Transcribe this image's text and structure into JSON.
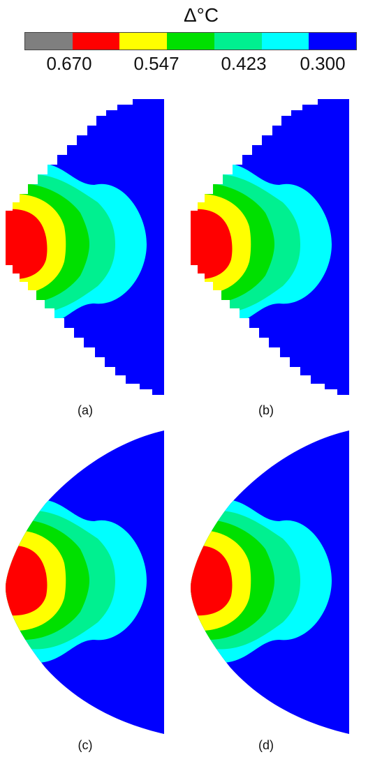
{
  "legend": {
    "title": "Δ°C",
    "colors": [
      "#7f7f7f",
      "#ff0000",
      "#ffff00",
      "#00e000",
      "#00f090",
      "#00ffff",
      "#0000ff"
    ],
    "ticks": [
      "0.670",
      "0.547",
      "0.423",
      "0.300"
    ]
  },
  "panels": [
    {
      "caption": "(a)",
      "boundary": "stepped"
    },
    {
      "caption": "(b)",
      "boundary": "stepped"
    },
    {
      "caption": "(c)",
      "boundary": "smooth"
    },
    {
      "caption": "(d)",
      "boundary": "smooth"
    }
  ]
}
